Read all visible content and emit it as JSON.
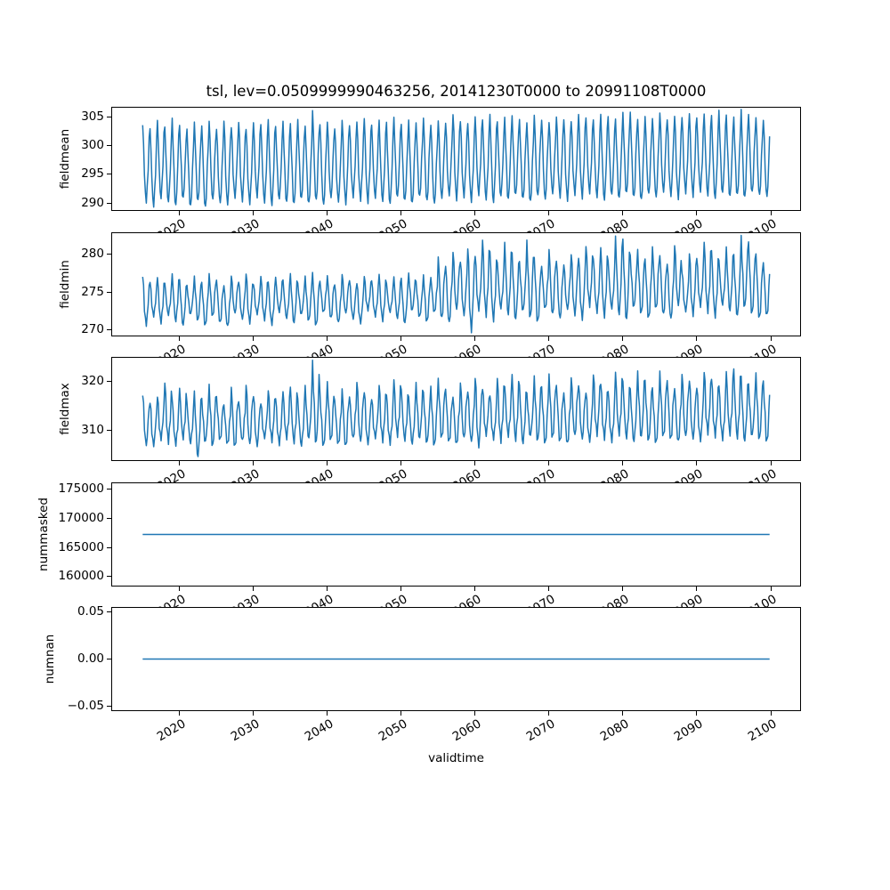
{
  "title": "tsl, lev=0.0509999990463256, 20141230T0000 to 20991108T0000",
  "accent_color": "#1f77b4",
  "chart_data": {
    "type": "line",
    "title": "tsl, lev=0.0509999990463256, 20141230T0000 to 20991108T0000",
    "xlabel": "validtime",
    "grid": false,
    "legend": false,
    "x": {
      "lim": [
        2010.75,
        2104.1
      ],
      "tick_values": [
        2020,
        2030,
        2040,
        2050,
        2060,
        2070,
        2080,
        2090,
        2100
      ],
      "tick_labels": [
        "2020",
        "2030",
        "2040",
        "2050",
        "2060",
        "2070",
        "2080",
        "2090",
        "2100"
      ],
      "data_start": 2015.0,
      "data_end": 2099.85
    },
    "subplots": [
      {
        "ylabel": "fieldmean",
        "ytick_values": [
          290,
          295,
          300,
          305
        ],
        "ytick_labels": [
          "290",
          "295",
          "300",
          "305"
        ],
        "ylim": [
          288.6,
          306.8
        ],
        "kind": "annual_cycle",
        "start_year": 2015,
        "troughs": [
          290.1,
          289.4,
          290.8,
          290.2,
          289.6,
          290.9,
          289.5,
          290.4,
          289.3,
          290.6,
          290.0,
          289.7,
          290.9,
          290.3,
          289.8,
          291.0,
          290.1,
          289.6,
          290.7,
          290.2,
          289.9,
          290.8,
          290.0,
          290.5,
          289.7,
          290.9,
          290.2,
          289.8,
          291.0,
          290.4,
          290.0,
          290.9,
          290.3,
          289.9,
          291.1,
          290.5,
          290.0,
          291.2,
          290.4,
          289.9,
          290.8,
          291.3,
          290.5,
          291.0,
          290.2,
          291.4,
          290.6,
          290.1,
          291.2,
          290.7,
          291.5,
          290.8,
          290.3,
          291.3,
          290.6,
          291.6,
          290.9,
          290.4,
          291.4,
          290.8,
          291.7,
          291.0,
          290.5,
          291.5,
          290.9,
          291.8,
          291.1,
          290.6,
          291.6,
          291.0,
          291.9,
          291.2,
          290.7,
          291.7,
          291.1,
          292.0,
          291.3,
          290.8,
          291.8,
          291.2,
          291.5,
          291.0,
          291.9,
          291.4,
          291.1
        ],
        "peaks": [
          303.6,
          302.9,
          304.3,
          303.1,
          304.6,
          303.4,
          302.8,
          304.1,
          303.5,
          304.4,
          303.0,
          304.5,
          303.3,
          304.2,
          302.9,
          304.0,
          303.6,
          304.4,
          303.2,
          304.1,
          303.7,
          304.5,
          303.4,
          306.2,
          303.8,
          304.3,
          303.1,
          304.6,
          303.6,
          304.2,
          304.7,
          303.5,
          304.3,
          303.9,
          304.8,
          303.6,
          304.4,
          304.0,
          304.9,
          303.7,
          304.5,
          304.1,
          305.6,
          304.3,
          303.9,
          305.0,
          304.4,
          305.3,
          304.0,
          304.8,
          305.1,
          304.5,
          304.0,
          305.4,
          304.6,
          304.2,
          305.2,
          304.7,
          304.3,
          305.5,
          304.8,
          304.4,
          305.3,
          304.9,
          304.5,
          305.7,
          305.8,
          304.6,
          305.2,
          304.9,
          305.9,
          304.7,
          305.3,
          305.0,
          305.6,
          304.8,
          305.4,
          305.1,
          306.0,
          305.2,
          304.9,
          306.3,
          305.5,
          305.0,
          304.6
        ]
      },
      {
        "ylabel": "fieldmin",
        "ytick_values": [
          270,
          275,
          280
        ],
        "ytick_labels": [
          "270",
          "275",
          "280"
        ],
        "ylim": [
          269.2,
          283.0
        ],
        "kind": "annual_cycle",
        "start_year": 2015,
        "troughs": [
          270.6,
          271.8,
          270.9,
          272.0,
          271.2,
          270.7,
          272.2,
          271.4,
          270.8,
          272.0,
          271.1,
          270.6,
          272.3,
          271.5,
          270.9,
          272.1,
          271.3,
          270.7,
          272.4,
          271.6,
          271.0,
          272.2,
          271.4,
          270.8,
          272.5,
          271.7,
          271.1,
          272.3,
          271.5,
          270.9,
          272.6,
          271.8,
          271.2,
          272.4,
          271.6,
          271.0,
          272.7,
          271.9,
          271.3,
          272.5,
          271.7,
          271.1,
          272.8,
          272.0,
          269.8,
          272.6,
          271.8,
          271.2,
          272.9,
          272.1,
          271.5,
          272.7,
          271.9,
          271.3,
          273.0,
          272.2,
          271.6,
          272.8,
          272.0,
          271.4,
          273.1,
          272.3,
          271.7,
          272.9,
          272.1,
          271.5,
          273.2,
          272.4,
          271.8,
          273.0,
          272.2,
          271.6,
          273.3,
          272.5,
          271.9,
          273.1,
          272.3,
          271.7,
          273.4,
          272.6,
          272.0,
          273.2,
          272.4,
          271.8,
          272.1
        ],
        "peaks": [
          277.2,
          276.4,
          277.0,
          276.2,
          277.4,
          276.6,
          275.9,
          277.1,
          276.3,
          277.5,
          276.7,
          276.0,
          277.3,
          276.5,
          277.6,
          276.1,
          277.2,
          276.4,
          277.0,
          276.6,
          277.4,
          276.2,
          277.1,
          277.6,
          276.5,
          277.3,
          276.1,
          277.5,
          276.7,
          276.3,
          277.2,
          276.6,
          277.4,
          276.2,
          277.0,
          276.8,
          277.5,
          276.4,
          277.3,
          277.0,
          279.8,
          278.6,
          280.5,
          279.2,
          281.0,
          279.9,
          282.0,
          280.4,
          278.9,
          281.5,
          280.1,
          279.0,
          281.8,
          279.6,
          278.5,
          280.8,
          279.3,
          278.8,
          280.2,
          279.7,
          281.2,
          279.5,
          280.9,
          279.1,
          282.3,
          281.9,
          279.8,
          280.6,
          279.4,
          281.1,
          280.0,
          278.9,
          281.4,
          277.7,
          280.3,
          279.6,
          281.7,
          280.5,
          279.2,
          280.9,
          279.9,
          282.4,
          281.6,
          280.1,
          279.0
        ]
      },
      {
        "ylabel": "fieldmax",
        "ytick_values": [
          310,
          320
        ],
        "ytick_labels": [
          "310",
          "320"
        ],
        "ylim": [
          303.8,
          325.0
        ],
        "kind": "annual_cycle",
        "start_year": 2015,
        "troughs": [
          307.0,
          306.8,
          308.0,
          307.3,
          306.9,
          308.2,
          307.4,
          304.7,
          307.8,
          307.1,
          308.3,
          307.5,
          306.9,
          308.1,
          307.3,
          306.8,
          308.4,
          307.6,
          307.0,
          308.2,
          307.4,
          306.9,
          308.5,
          307.7,
          307.1,
          308.3,
          307.5,
          307.0,
          308.6,
          307.8,
          307.2,
          308.4,
          307.6,
          307.1,
          308.7,
          307.9,
          307.3,
          308.5,
          307.7,
          307.2,
          308.8,
          308.0,
          307.4,
          308.6,
          307.8,
          306.6,
          308.9,
          308.1,
          307.5,
          308.7,
          307.9,
          307.4,
          309.0,
          308.2,
          307.6,
          308.8,
          308.0,
          307.5,
          309.1,
          308.3,
          307.7,
          308.9,
          308.1,
          307.6,
          309.0,
          308.4,
          307.8,
          308.8,
          308.2,
          307.7,
          309.1,
          308.5,
          307.9,
          308.9,
          308.3,
          307.8,
          309.2,
          308.6,
          308.0,
          309.0,
          308.4,
          307.9,
          309.1,
          308.5,
          308.0
        ],
        "peaks": [
          317.4,
          315.8,
          317.0,
          319.8,
          316.2,
          318.5,
          315.5,
          317.8,
          316.4,
          319.2,
          316.8,
          315.2,
          318.9,
          316.0,
          319.5,
          317.2,
          315.6,
          318.3,
          316.6,
          317.9,
          318.7,
          316.3,
          319.0,
          324.0,
          317.5,
          319.8,
          316.1,
          318.6,
          317.0,
          320.1,
          318.0,
          316.5,
          319.4,
          317.3,
          320.3,
          318.2,
          316.7,
          319.6,
          317.6,
          318.8,
          320.5,
          318.4,
          316.9,
          319.9,
          318.1,
          321.0,
          318.6,
          317.2,
          320.7,
          318.9,
          321.2,
          319.0,
          317.5,
          320.9,
          318.7,
          321.4,
          319.2,
          317.8,
          321.0,
          319.4,
          317.9,
          321.6,
          319.6,
          318.0,
          321.8,
          319.8,
          318.3,
          321.9,
          320.0,
          318.5,
          322.0,
          320.2,
          318.7,
          321.7,
          320.4,
          318.9,
          322.1,
          320.6,
          319.1,
          321.9,
          322.3,
          320.8,
          319.3,
          321.5,
          319.9
        ]
      },
      {
        "ylabel": "nummasked",
        "ytick_values": [
          160000,
          165000,
          170000,
          175000
        ],
        "ytick_labels": [
          "160000",
          "165000",
          "170000",
          "175000"
        ],
        "ylim": [
          158300,
          176300
        ],
        "kind": "constant",
        "value": 167300
      },
      {
        "ylabel": "numnan",
        "ytick_values": [
          -0.05,
          0.0,
          0.05
        ],
        "ytick_labels": [
          "−0.05",
          "0.00",
          "0.05"
        ],
        "ylim": [
          -0.055,
          0.055
        ],
        "kind": "constant",
        "value": 0.0
      }
    ]
  }
}
